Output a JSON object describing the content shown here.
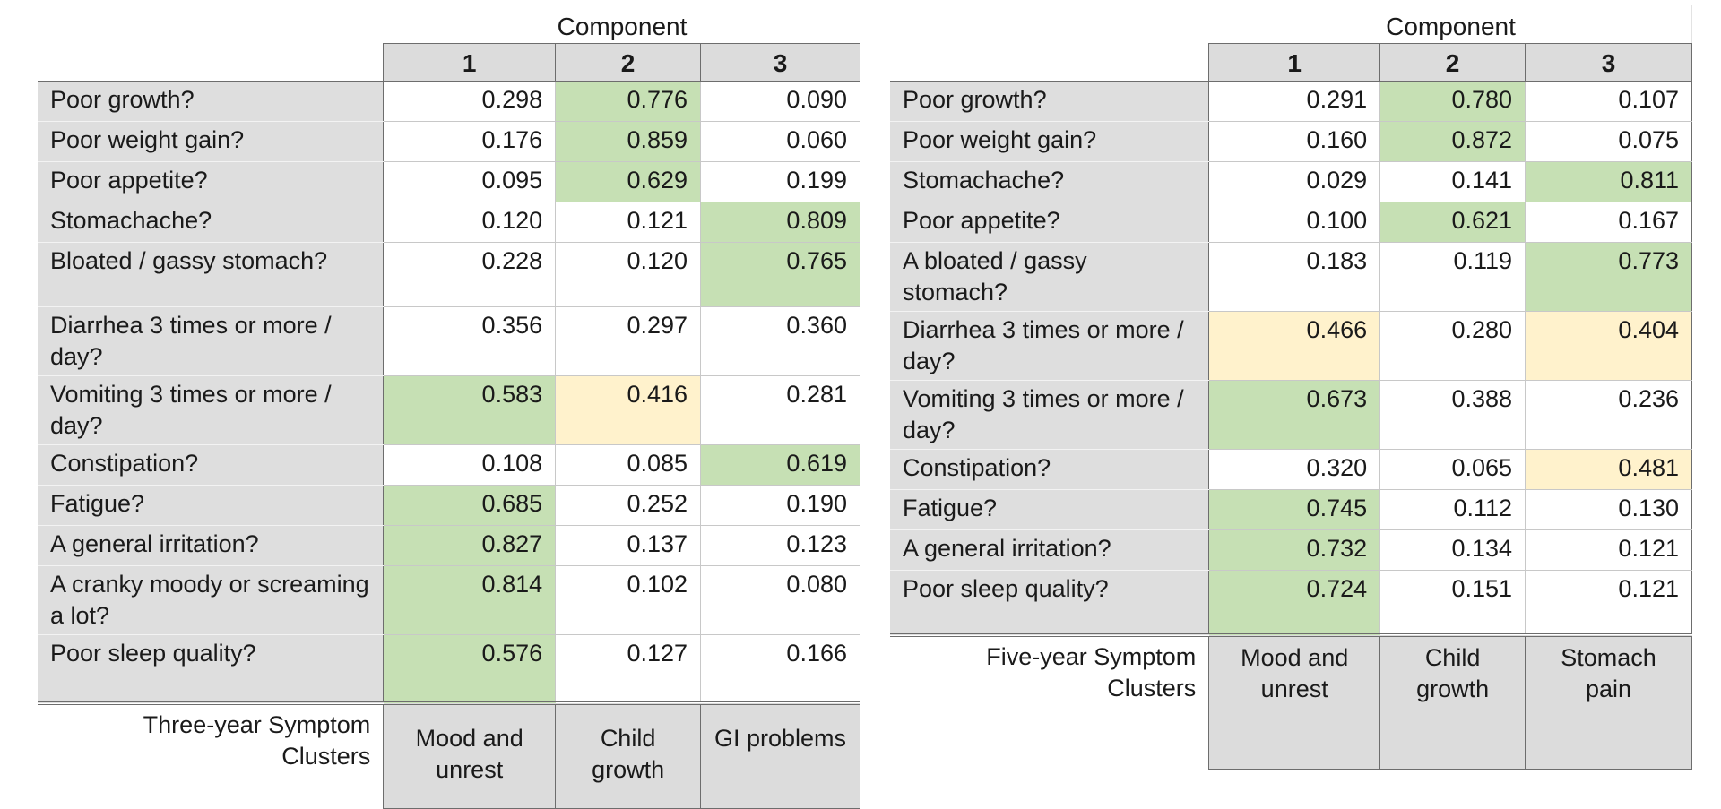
{
  "three_year": {
    "component_title": "Component",
    "columns": [
      "1",
      "2",
      "3"
    ],
    "rows": [
      {
        "label": "Poor growth?",
        "values": [
          "0.298",
          "0.776",
          "0.090"
        ],
        "highlight": [
          "",
          "green",
          ""
        ]
      },
      {
        "label": "Poor weight gain?",
        "values": [
          "0.176",
          "0.859",
          "0.060"
        ],
        "highlight": [
          "",
          "green",
          ""
        ]
      },
      {
        "label": "Poor appetite?",
        "values": [
          "0.095",
          "0.629",
          "0.199"
        ],
        "highlight": [
          "",
          "green",
          ""
        ]
      },
      {
        "label": "Stomachache?",
        "values": [
          "0.120",
          "0.121",
          "0.809"
        ],
        "highlight": [
          "",
          "",
          "green"
        ]
      },
      {
        "label": "Bloated / gassy stomach?",
        "values": [
          "0.228",
          "0.120",
          "0.765"
        ],
        "highlight": [
          "",
          "",
          "green"
        ]
      },
      {
        "label": "Diarrhea 3 times or more / day?",
        "values": [
          "0.356",
          "0.297",
          "0.360"
        ],
        "highlight": [
          "",
          "",
          ""
        ]
      },
      {
        "label": "Vomiting 3 times or more / day?",
        "values": [
          "0.583",
          "0.416",
          "0.281"
        ],
        "highlight": [
          "green",
          "yellow",
          ""
        ]
      },
      {
        "label": "Constipation?",
        "values": [
          "0.108",
          "0.085",
          "0.619"
        ],
        "highlight": [
          "",
          "",
          "green"
        ]
      },
      {
        "label": "Fatigue?",
        "values": [
          "0.685",
          "0.252",
          "0.190"
        ],
        "highlight": [
          "green",
          "",
          ""
        ]
      },
      {
        "label": "A general irritation?",
        "values": [
          "0.827",
          "0.137",
          "0.123"
        ],
        "highlight": [
          "green",
          "",
          ""
        ]
      },
      {
        "label": "A cranky moody or screaming a lot?",
        "values": [
          "0.814",
          "0.102",
          "0.080"
        ],
        "highlight": [
          "green",
          "",
          ""
        ]
      },
      {
        "label": "Poor sleep quality?",
        "values": [
          "0.576",
          "0.127",
          "0.166"
        ],
        "highlight": [
          "green",
          "",
          ""
        ]
      }
    ],
    "clusters_label": "Three-year Symptom Clusters",
    "clusters": [
      "Mood and unrest",
      "Child growth",
      "GI problems"
    ]
  },
  "five_year": {
    "component_title": "Component",
    "columns": [
      "1",
      "2",
      "3"
    ],
    "rows": [
      {
        "label": "Poor growth?",
        "values": [
          "0.291",
          "0.780",
          "0.107"
        ],
        "highlight": [
          "",
          "green",
          ""
        ]
      },
      {
        "label": "Poor weight gain?",
        "values": [
          "0.160",
          "0.872",
          "0.075"
        ],
        "highlight": [
          "",
          "green",
          ""
        ]
      },
      {
        "label": "Stomachache?",
        "values": [
          "0.029",
          "0.141",
          "0.811"
        ],
        "highlight": [
          "",
          "",
          "green"
        ]
      },
      {
        "label": "Poor appetite?",
        "values": [
          "0.100",
          "0.621",
          "0.167"
        ],
        "highlight": [
          "",
          "green",
          ""
        ]
      },
      {
        "label": "A bloated / gassy stomach?",
        "values": [
          "0.183",
          "0.119",
          "0.773"
        ],
        "highlight": [
          "",
          "",
          "green"
        ]
      },
      {
        "label": "Diarrhea 3 times or more / day?",
        "values": [
          "0.466",
          "0.280",
          "0.404"
        ],
        "highlight": [
          "yellow",
          "",
          "yellow"
        ]
      },
      {
        "label": "Vomiting 3 times or more / day?",
        "values": [
          "0.673",
          "0.388",
          "0.236"
        ],
        "highlight": [
          "green",
          "",
          ""
        ]
      },
      {
        "label": "Constipation?",
        "values": [
          "0.320",
          "0.065",
          "0.481"
        ],
        "highlight": [
          "",
          "",
          "yellow"
        ]
      },
      {
        "label": "Fatigue?",
        "values": [
          "0.745",
          "0.112",
          "0.130"
        ],
        "highlight": [
          "green",
          "",
          ""
        ]
      },
      {
        "label": "A general irritation?",
        "values": [
          "0.732",
          "0.134",
          "0.121"
        ],
        "highlight": [
          "green",
          "",
          ""
        ]
      },
      {
        "label": "Poor sleep quality?",
        "values": [
          "0.724",
          "0.151",
          "0.121"
        ],
        "highlight": [
          "green",
          "",
          ""
        ]
      }
    ],
    "clusters_label": "Five-year Symptom Clusters",
    "clusters": [
      "Mood and unrest",
      "Child growth",
      "Stomach pain"
    ]
  },
  "colors": {
    "green": "#c6e0b4",
    "yellow": "#fff2cc",
    "header_gray": "#dcdcdc",
    "label_gray": "#dedede"
  }
}
